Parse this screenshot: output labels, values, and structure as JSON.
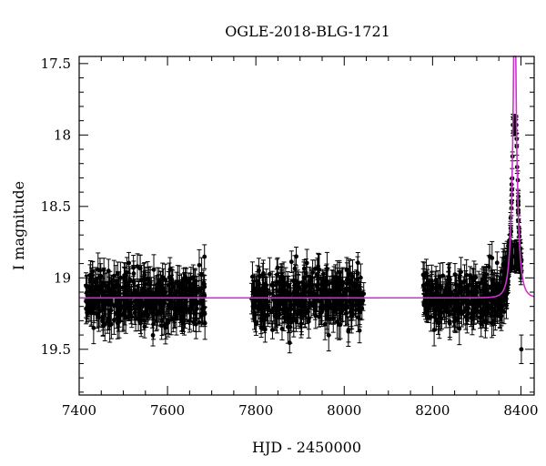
{
  "chart_data": {
    "type": "scatter",
    "title": "OGLE-2018-BLG-1721",
    "xlabel": "HJD - 2450000",
    "ylabel": "I magnitude",
    "xlim": [
      7400,
      8430
    ],
    "ylim": [
      17.45,
      19.82
    ],
    "y_inverted": true,
    "x_ticks": [
      7400,
      7600,
      7800,
      8000,
      8200,
      8400
    ],
    "x_tick_labels": [
      "7400",
      "7600",
      "7800",
      "8000",
      "8200",
      "8400"
    ],
    "y_ticks": [
      17.5,
      18,
      18.5,
      19,
      19.5
    ],
    "y_tick_labels": [
      "17.5",
      "18",
      "18.5",
      "19",
      "19.5"
    ],
    "grid": false,
    "series": [
      {
        "kind": "points-with-errorbars",
        "color": "#000000",
        "seasons": [
          {
            "x_range": [
              7415,
              7685
            ],
            "mag_mean": 19.15,
            "mag_scatter": 0.12,
            "err": [
              0.06,
              0.12
            ],
            "count": 460
          },
          {
            "x_range": [
              7790,
              8045
            ],
            "mag_mean": 19.15,
            "mag_scatter": 0.12,
            "err": [
              0.06,
              0.12
            ],
            "count": 430
          },
          {
            "x_range": [
              8178,
              8400
            ],
            "mag_mean": 19.15,
            "mag_scatter": 0.12,
            "err": [
              0.06,
              0.12
            ],
            "count": 400
          }
        ],
        "event": {
          "t0": 8385,
          "peak_mag": 17.93
        }
      },
      {
        "kind": "model-curve",
        "color": "#cc33cc",
        "baseline_mag": 19.14,
        "t0": 8386,
        "tE": 12,
        "u0": 0.062,
        "x_range": [
          7400,
          8430
        ]
      }
    ]
  }
}
